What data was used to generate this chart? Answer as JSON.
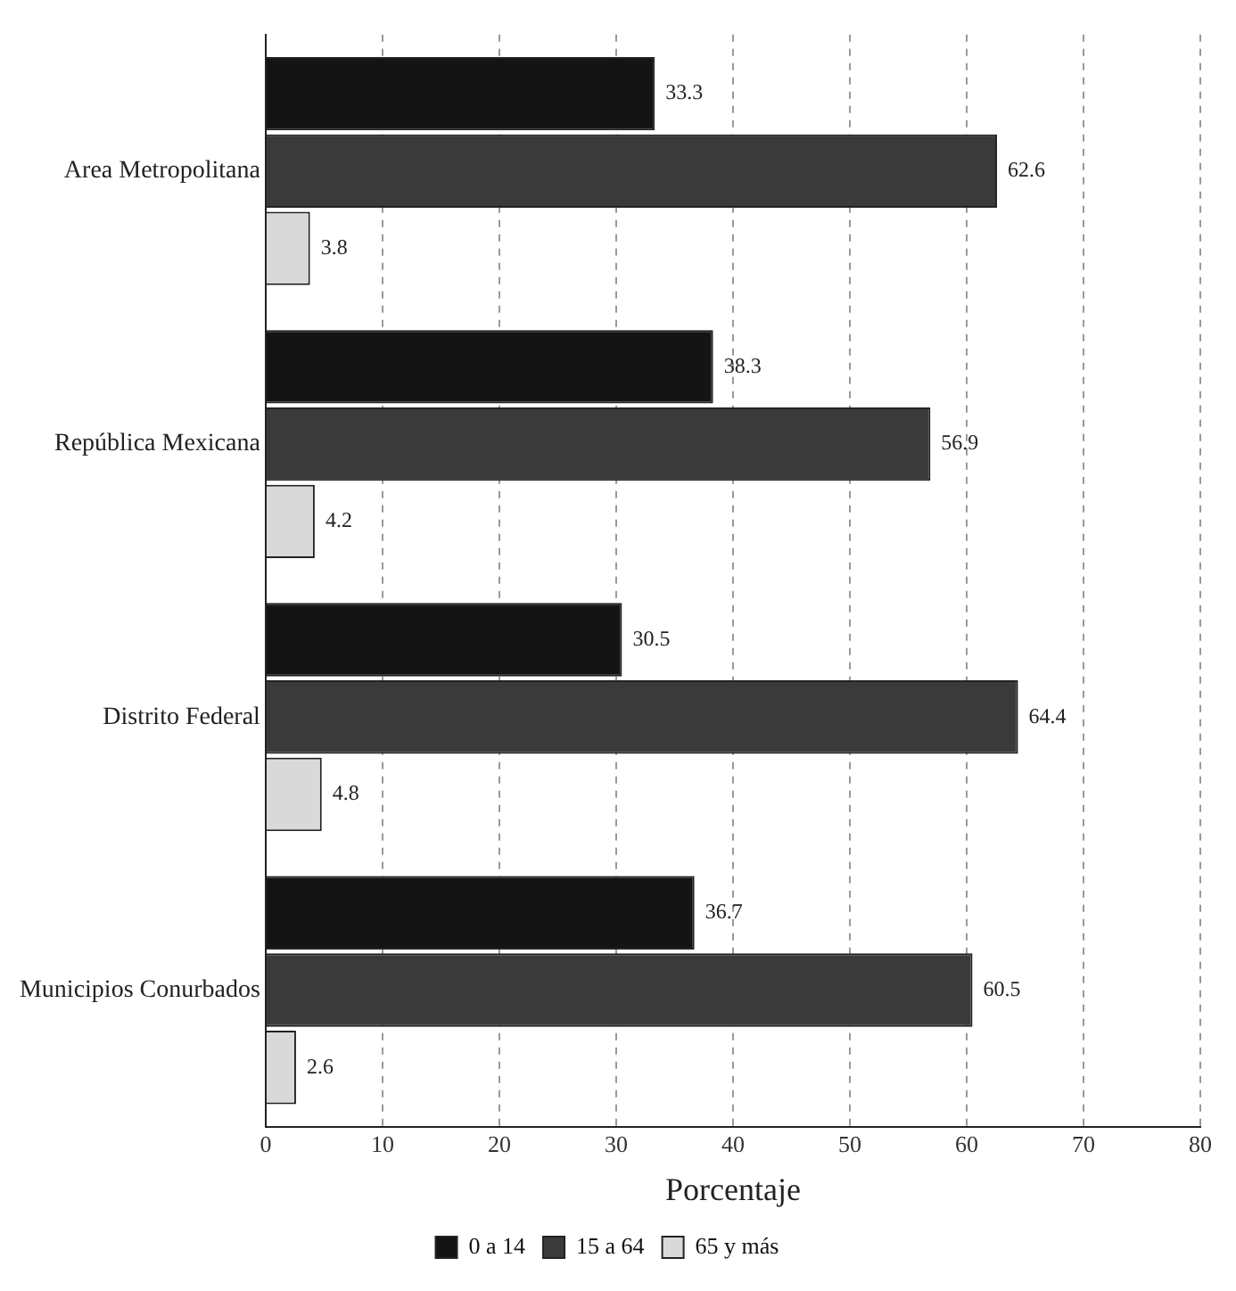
{
  "chart_data": {
    "type": "bar",
    "orientation": "horizontal",
    "xlabel": "Porcentaje",
    "categories": [
      "Area Metropolitana",
      "República Mexicana",
      "Distrito Federal",
      "Municipios Conurbados"
    ],
    "series": [
      {
        "name": "0 a 14",
        "color": "#141414",
        "values": [
          33.3,
          38.3,
          30.5,
          36.7
        ]
      },
      {
        "name": "15 a 64",
        "color": "#3a3a3a",
        "values": [
          62.6,
          56.9,
          64.4,
          60.5
        ]
      },
      {
        "name": "65 y más",
        "color": "#d9d9d9",
        "values": [
          3.8,
          4.2,
          4.8,
          2.6
        ]
      }
    ],
    "xlim": [
      0,
      80
    ],
    "xticks": [
      0,
      10,
      20,
      30,
      40,
      50,
      60,
      70,
      80
    ],
    "grid": "x",
    "legend": "bottom",
    "data_labels": true
  }
}
